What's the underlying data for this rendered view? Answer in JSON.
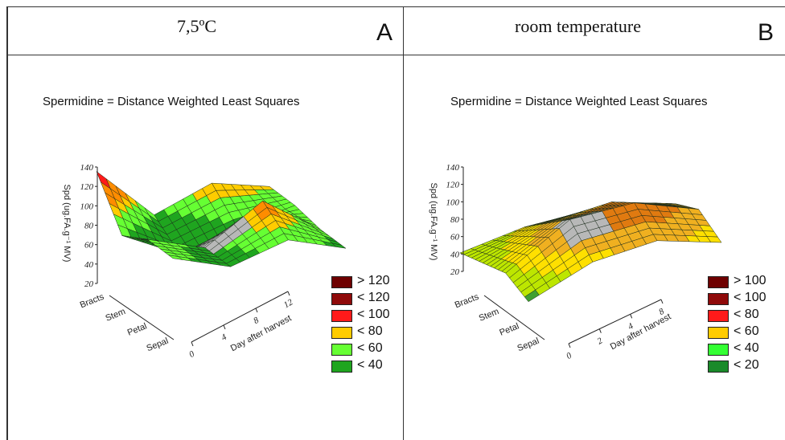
{
  "panels": [
    {
      "id": "A",
      "condition": "7,5ºC",
      "letter": "A",
      "title": "Spermidine = Distance Weighted Least Squares",
      "zlabel": "Spd (ug.FA.g⁻¹ MV)",
      "zticks": [
        "140",
        "120",
        "100",
        "80",
        "60",
        "40",
        "20"
      ],
      "yticks": [
        "Bracts",
        "Stem",
        "Petal",
        "Sepal"
      ],
      "xticks": [
        "0",
        "4",
        "8",
        "12"
      ],
      "xlabel": "Day after harvest",
      "legend": [
        {
          "label": "> 120",
          "color": "#6e0000"
        },
        {
          "label": "< 120",
          "color": "#8f0a0a"
        },
        {
          "label": "< 100",
          "color": "#ff1a1a"
        },
        {
          "label": "< 80",
          "color": "#ffcc00"
        },
        {
          "label": "< 60",
          "color": "#66ff33"
        },
        {
          "label": "< 40",
          "color": "#1fa51f"
        }
      ]
    },
    {
      "id": "B",
      "condition": "room temperature",
      "letter": "B",
      "title": "Spermidine = Distance Weighted Least Squares",
      "zlabel": "Spd (ug.FA.g⁻¹ MV)",
      "zticks": [
        "140",
        "120",
        "100",
        "80",
        "60",
        "40",
        "20"
      ],
      "yticks": [
        "Bracts",
        "Stem",
        "Petal",
        "Sepal"
      ],
      "xticks": [
        "0",
        "2",
        "4",
        "8"
      ],
      "xlabel": "Day after harvest",
      "legend": [
        {
          "label": "> 100",
          "color": "#6e0000"
        },
        {
          "label": "< 100",
          "color": "#8f0a0a"
        },
        {
          "label": "< 80",
          "color": "#ff1a1a"
        },
        {
          "label": "< 60",
          "color": "#ffcc00"
        },
        {
          "label": "< 40",
          "color": "#33ff33"
        },
        {
          "label": "< 20",
          "color": "#1a8a2a"
        }
      ]
    }
  ],
  "chart_data": [
    {
      "type": "surface",
      "title": "Spermidine = Distance Weighted Least Squares",
      "xlabel": "Day after harvest",
      "ylabel": "",
      "zlabel": "Spd (ug.FA.g⁻¹ MV)",
      "x": [
        0,
        4,
        8,
        12
      ],
      "y": [
        "Bracts",
        "Stem",
        "Petal",
        "Sepal"
      ],
      "zlim": [
        20,
        140
      ],
      "z": [
        [
          110,
          60,
          85,
          75
        ],
        [
          60,
          35,
          55,
          70
        ],
        [
          70,
          55,
          95,
          60
        ],
        [
          65,
          50,
          70,
          55
        ]
      ],
      "color_bins": [
        "> 120",
        "< 120",
        "< 100",
        "< 80",
        "< 60",
        "< 40"
      ]
    },
    {
      "type": "surface",
      "title": "Spermidine = Distance Weighted Least Squares",
      "xlabel": "Day after harvest",
      "ylabel": "",
      "zlabel": "Spd (ug.FA.g⁻¹ MV)",
      "x": [
        0,
        2,
        4,
        8
      ],
      "y": [
        "Bracts",
        "Stem",
        "Petal",
        "Sepal"
      ],
      "zlim": [
        20,
        140
      ],
      "z": [
        [
          40,
          55,
          60,
          55
        ],
        [
          45,
          75,
          85,
          70
        ],
        [
          50,
          95,
          100,
          80
        ],
        [
          35,
          65,
          75,
          60
        ]
      ],
      "color_bins": [
        "> 100",
        "< 100",
        "< 80",
        "< 60",
        "< 40",
        "< 20"
      ]
    }
  ]
}
